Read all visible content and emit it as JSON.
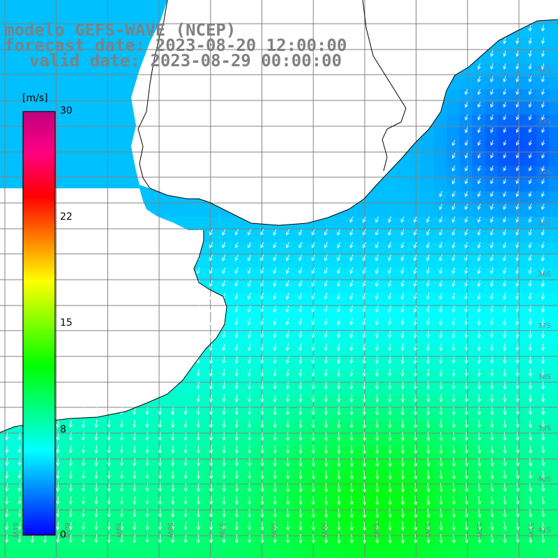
{
  "title": {
    "line1": "modelo GEFS-WAVE (NCEP)",
    "line2": "forecast date: 2023-08-20 12:00:00",
    "line3": "valid date: 2023-08-29 00:00:00"
  },
  "colorbar": {
    "unit": "[m/s]",
    "ticks": [
      "30",
      "22",
      "15",
      "8",
      "0"
    ],
    "tick_values": [
      30,
      22,
      15,
      8,
      0
    ],
    "range": [
      0,
      30
    ],
    "colors": [
      "#0000ff",
      "#0080ff",
      "#00ffff",
      "#00ff80",
      "#00ff00",
      "#80ff00",
      "#ffff00",
      "#ff8000",
      "#ff0000",
      "#ff0080",
      "#c00080"
    ]
  },
  "map": {
    "lat_labels": [
      "32S",
      "33S",
      "34S",
      "35S",
      "36S",
      "37S",
      "38S",
      "39S",
      "40S",
      "41S"
    ],
    "lon_labels": [
      "61W",
      "60W",
      "59W",
      "58W",
      "57W",
      "56W",
      "55W",
      "54W",
      "53W",
      "52W",
      "51W"
    ],
    "lon_range": [
      -61,
      -50.4
    ],
    "lat_range": [
      -41.2,
      -30.8
    ],
    "land_color": "#ffffff",
    "grid_color": "#808080",
    "arrow_color": "#ffffff"
  }
}
